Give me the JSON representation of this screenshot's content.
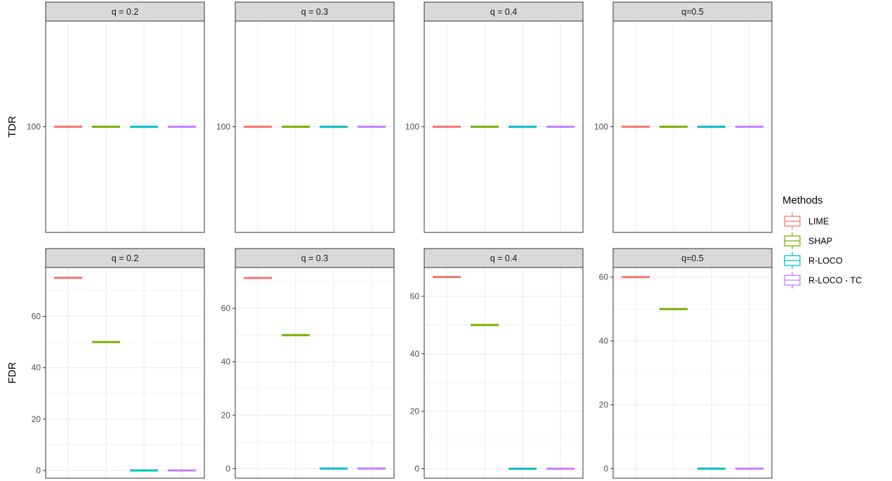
{
  "row_labels": [
    "TDR",
    "FDR"
  ],
  "legend": {
    "title": "Methods",
    "items": [
      "LIME",
      "SHAP",
      "R-LOCO",
      "R-LOCO - TC"
    ]
  },
  "colors": {
    "LIME": "#F8766D",
    "SHAP": "#7CAE00",
    "R-LOCO": "#00BFC4",
    "R-LOCO - TC": "#C77CFF",
    "strip_bg": "#D9D9D9",
    "grid": "#EBEBEB",
    "panel_border": "#333333",
    "text": "#4D4D4D"
  },
  "chart_data": {
    "type": "boxplot-faceted",
    "methods": [
      "LIME",
      "SHAP",
      "R-LOCO",
      "R-LOCO - TC"
    ],
    "facets": [
      "q = 0.2",
      "q = 0.3",
      "q = 0.4",
      "q=0.5"
    ],
    "rows": [
      {
        "metric": "TDR",
        "yticks": [
          [
            100
          ],
          [
            100
          ],
          [
            100
          ],
          [
            100
          ]
        ],
        "ylim": [
          [
            99.9,
            100.1
          ],
          [
            99.9,
            100.1
          ],
          [
            99.9,
            100.1
          ],
          [
            99.9,
            100.1
          ]
        ],
        "values": [
          [
            100,
            100,
            100,
            100
          ],
          [
            100,
            100,
            100,
            100
          ],
          [
            100,
            100,
            100,
            100
          ],
          [
            100,
            100,
            100,
            100
          ]
        ]
      },
      {
        "metric": "FDR",
        "yticks": [
          [
            0,
            20,
            40,
            60
          ],
          [
            0,
            20,
            40,
            60
          ],
          [
            0,
            20,
            40,
            60
          ],
          [
            0,
            20,
            40,
            60
          ]
        ],
        "ylim": [
          [
            -3,
            79
          ],
          [
            -3.6,
            75.3
          ],
          [
            -3.3,
            70
          ],
          [
            -3,
            63
          ]
        ],
        "values": [
          [
            75,
            50,
            0,
            0
          ],
          [
            71.4,
            50,
            0,
            0
          ],
          [
            66.7,
            50,
            0,
            0
          ],
          [
            60,
            50,
            0,
            0
          ]
        ]
      }
    ]
  }
}
